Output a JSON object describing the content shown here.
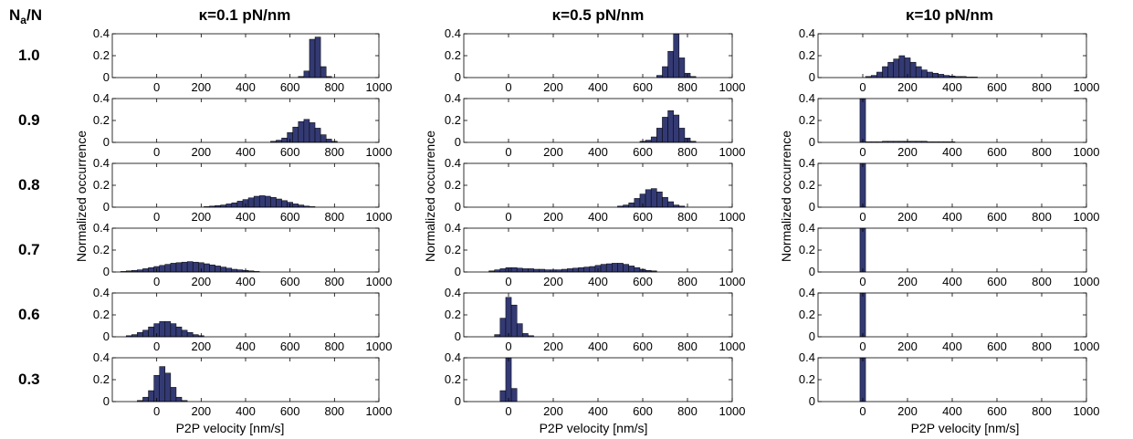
{
  "figure": {
    "row_header": {
      "main": "N",
      "sub": "a",
      "rest": "/N"
    },
    "col_titles": [
      "κ=0.1 pN/nm",
      "κ=0.5 pN/nm",
      "κ=10 pN/nm"
    ],
    "row_labels": [
      "1.0",
      "0.9",
      "0.8",
      "0.7",
      "0.6",
      "0.3"
    ],
    "ylabel": "Normalized occurrence",
    "xlabel": "P2P velocity [nm/s]",
    "bar_color": "#333a73"
  },
  "chart_data": {
    "type": "bar",
    "layout": "grid 6 rows x 3 columns of histograms",
    "xlim": [
      -200,
      1000
    ],
    "ylim": [
      0,
      0.4
    ],
    "xticks": [
      0,
      200,
      400,
      600,
      800,
      1000
    ],
    "yticks": [
      0,
      0.2,
      0.4
    ],
    "bin_width": 25,
    "panels": [
      {
        "col": 0,
        "row": 0,
        "bins": [
          [
            650,
            0.01
          ],
          [
            675,
            0.06
          ],
          [
            700,
            0.35
          ],
          [
            725,
            0.37
          ],
          [
            750,
            0.1
          ],
          [
            775,
            0.01
          ]
        ]
      },
      {
        "col": 0,
        "row": 1,
        "bins": [
          [
            525,
            0.01
          ],
          [
            550,
            0.02
          ],
          [
            575,
            0.04
          ],
          [
            600,
            0.09
          ],
          [
            625,
            0.14
          ],
          [
            650,
            0.19
          ],
          [
            675,
            0.21
          ],
          [
            700,
            0.18
          ],
          [
            725,
            0.13
          ],
          [
            750,
            0.07
          ],
          [
            775,
            0.03
          ],
          [
            800,
            0.01
          ]
        ]
      },
      {
        "col": 0,
        "row": 2,
        "bins": [
          [
            225,
            0.005
          ],
          [
            250,
            0.01
          ],
          [
            275,
            0.015
          ],
          [
            300,
            0.02
          ],
          [
            325,
            0.03
          ],
          [
            350,
            0.04
          ],
          [
            375,
            0.055
          ],
          [
            400,
            0.07
          ],
          [
            425,
            0.085
          ],
          [
            450,
            0.1
          ],
          [
            475,
            0.105
          ],
          [
            500,
            0.1
          ],
          [
            525,
            0.09
          ],
          [
            550,
            0.075
          ],
          [
            575,
            0.06
          ],
          [
            600,
            0.045
          ],
          [
            625,
            0.03
          ],
          [
            650,
            0.02
          ],
          [
            675,
            0.01
          ],
          [
            700,
            0.005
          ]
        ]
      },
      {
        "col": 0,
        "row": 3,
        "bins": [
          [
            -150,
            0.005
          ],
          [
            -125,
            0.01
          ],
          [
            -100,
            0.015
          ],
          [
            -75,
            0.02
          ],
          [
            -50,
            0.03
          ],
          [
            -25,
            0.04
          ],
          [
            0,
            0.05
          ],
          [
            25,
            0.06
          ],
          [
            50,
            0.07
          ],
          [
            75,
            0.08
          ],
          [
            100,
            0.085
          ],
          [
            125,
            0.09
          ],
          [
            150,
            0.095
          ],
          [
            175,
            0.09
          ],
          [
            200,
            0.085
          ],
          [
            225,
            0.075
          ],
          [
            250,
            0.065
          ],
          [
            275,
            0.055
          ],
          [
            300,
            0.045
          ],
          [
            325,
            0.035
          ],
          [
            350,
            0.025
          ],
          [
            375,
            0.02
          ],
          [
            400,
            0.015
          ],
          [
            425,
            0.01
          ],
          [
            450,
            0.005
          ]
        ]
      },
      {
        "col": 0,
        "row": 4,
        "bins": [
          [
            -125,
            0.01
          ],
          [
            -100,
            0.02
          ],
          [
            -75,
            0.04
          ],
          [
            -50,
            0.06
          ],
          [
            -25,
            0.09
          ],
          [
            0,
            0.12
          ],
          [
            25,
            0.14
          ],
          [
            50,
            0.14
          ],
          [
            75,
            0.12
          ],
          [
            100,
            0.09
          ],
          [
            125,
            0.06
          ],
          [
            150,
            0.04
          ],
          [
            175,
            0.02
          ],
          [
            200,
            0.01
          ]
        ]
      },
      {
        "col": 0,
        "row": 5,
        "bins": [
          [
            -75,
            0.01
          ],
          [
            -50,
            0.04
          ],
          [
            -25,
            0.1
          ],
          [
            0,
            0.24
          ],
          [
            25,
            0.32
          ],
          [
            50,
            0.26
          ],
          [
            75,
            0.13
          ],
          [
            100,
            0.04
          ],
          [
            125,
            0.01
          ]
        ]
      },
      {
        "col": 1,
        "row": 0,
        "bins": [
          [
            675,
            0.02
          ],
          [
            700,
            0.1
          ],
          [
            725,
            0.24
          ],
          [
            750,
            0.4
          ],
          [
            775,
            0.18
          ],
          [
            800,
            0.04
          ],
          [
            825,
            0.01
          ]
        ]
      },
      {
        "col": 1,
        "row": 1,
        "bins": [
          [
            600,
            0.01
          ],
          [
            625,
            0.02
          ],
          [
            650,
            0.05
          ],
          [
            675,
            0.13
          ],
          [
            700,
            0.23
          ],
          [
            725,
            0.29
          ],
          [
            750,
            0.25
          ],
          [
            775,
            0.13
          ],
          [
            800,
            0.04
          ],
          [
            825,
            0.01
          ]
        ]
      },
      {
        "col": 1,
        "row": 2,
        "bins": [
          [
            500,
            0.01
          ],
          [
            525,
            0.02
          ],
          [
            550,
            0.04
          ],
          [
            575,
            0.08
          ],
          [
            600,
            0.12
          ],
          [
            625,
            0.16
          ],
          [
            650,
            0.17
          ],
          [
            675,
            0.14
          ],
          [
            700,
            0.09
          ],
          [
            725,
            0.05
          ],
          [
            750,
            0.02
          ],
          [
            775,
            0.01
          ]
        ]
      },
      {
        "col": 1,
        "row": 3,
        "bins": [
          [
            -75,
            0.01
          ],
          [
            -50,
            0.02
          ],
          [
            -25,
            0.03
          ],
          [
            0,
            0.04
          ],
          [
            25,
            0.04
          ],
          [
            50,
            0.035
          ],
          [
            75,
            0.03
          ],
          [
            100,
            0.03
          ],
          [
            125,
            0.025
          ],
          [
            150,
            0.025
          ],
          [
            175,
            0.02
          ],
          [
            200,
            0.02
          ],
          [
            225,
            0.02
          ],
          [
            250,
            0.025
          ],
          [
            275,
            0.03
          ],
          [
            300,
            0.035
          ],
          [
            325,
            0.04
          ],
          [
            350,
            0.045
          ],
          [
            375,
            0.05
          ],
          [
            400,
            0.06
          ],
          [
            425,
            0.07
          ],
          [
            450,
            0.075
          ],
          [
            475,
            0.08
          ],
          [
            500,
            0.08
          ],
          [
            525,
            0.07
          ],
          [
            550,
            0.055
          ],
          [
            575,
            0.04
          ],
          [
            600,
            0.025
          ],
          [
            625,
            0.015
          ],
          [
            650,
            0.01
          ]
        ]
      },
      {
        "col": 1,
        "row": 4,
        "bins": [
          [
            -50,
            0.02
          ],
          [
            -25,
            0.17
          ],
          [
            0,
            0.36
          ],
          [
            25,
            0.29
          ],
          [
            50,
            0.12
          ],
          [
            75,
            0.03
          ],
          [
            100,
            0.01
          ]
        ]
      },
      {
        "col": 1,
        "row": 5,
        "bins": [
          [
            -25,
            0.1
          ],
          [
            0,
            0.4
          ],
          [
            25,
            0.12
          ]
        ]
      },
      {
        "col": 2,
        "row": 0,
        "bins": [
          [
            25,
            0.01
          ],
          [
            50,
            0.02
          ],
          [
            75,
            0.05
          ],
          [
            100,
            0.1
          ],
          [
            125,
            0.14
          ],
          [
            150,
            0.17
          ],
          [
            175,
            0.2
          ],
          [
            200,
            0.18
          ],
          [
            225,
            0.14
          ],
          [
            250,
            0.1
          ],
          [
            275,
            0.07
          ],
          [
            300,
            0.05
          ],
          [
            325,
            0.04
          ],
          [
            350,
            0.03
          ],
          [
            375,
            0.02
          ],
          [
            400,
            0.015
          ],
          [
            425,
            0.01
          ],
          [
            450,
            0.01
          ],
          [
            475,
            0.005
          ],
          [
            500,
            0.005
          ]
        ]
      },
      {
        "col": 2,
        "row": 1,
        "bins": [
          [
            0,
            0.4
          ],
          [
            25,
            0.005
          ],
          [
            50,
            0.005
          ],
          [
            75,
            0.005
          ],
          [
            100,
            0.01
          ],
          [
            125,
            0.01
          ],
          [
            150,
            0.01
          ],
          [
            175,
            0.01
          ],
          [
            200,
            0.01
          ],
          [
            225,
            0.01
          ],
          [
            250,
            0.01
          ],
          [
            275,
            0.01
          ],
          [
            300,
            0.005
          ],
          [
            325,
            0.005
          ],
          [
            350,
            0.005
          ],
          [
            375,
            0.005
          ],
          [
            400,
            0.005
          ]
        ]
      },
      {
        "col": 2,
        "row": 2,
        "bins": [
          [
            0,
            0.4
          ]
        ]
      },
      {
        "col": 2,
        "row": 3,
        "bins": [
          [
            0,
            0.4
          ]
        ]
      },
      {
        "col": 2,
        "row": 4,
        "bins": [
          [
            0,
            0.4
          ]
        ]
      },
      {
        "col": 2,
        "row": 5,
        "bins": [
          [
            0,
            0.4
          ]
        ]
      }
    ]
  }
}
